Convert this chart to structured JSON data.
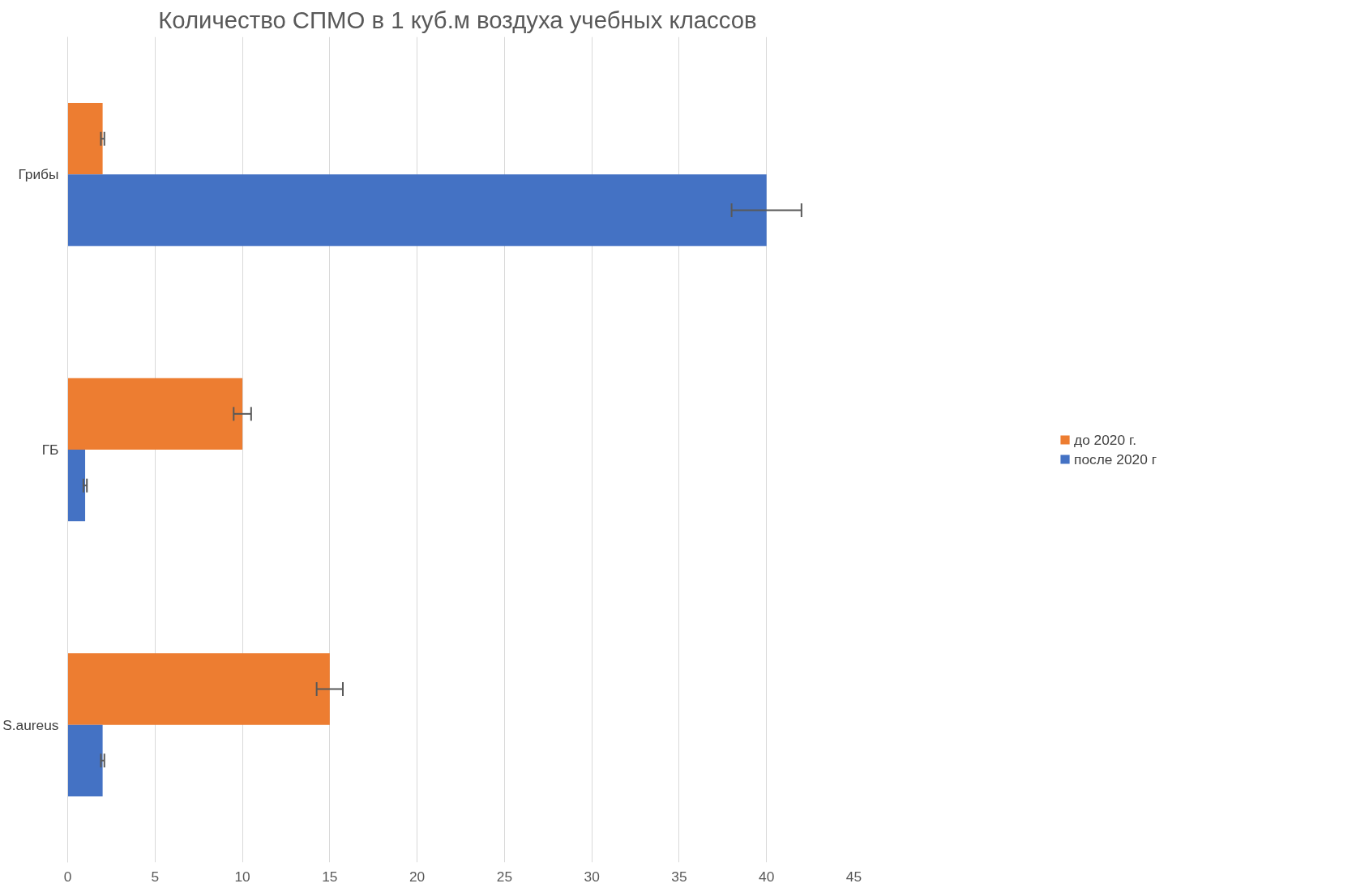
{
  "chart_data": {
    "type": "bar",
    "orientation": "horizontal",
    "title": "Количество СПМО в  1 куб.м воздуха учебных классов",
    "categories": [
      "Грибы",
      "ГБ",
      "S.aureus"
    ],
    "series": [
      {
        "name": "до 2020 г.",
        "color": "#ed7d31",
        "values": [
          2,
          10,
          15
        ],
        "errors": [
          0.1,
          0.5,
          0.75
        ]
      },
      {
        "name": "после 2020 г",
        "color": "#4472c4",
        "values": [
          40,
          1,
          2
        ],
        "errors": [
          2,
          0.1,
          0.1
        ]
      }
    ],
    "xlim": [
      0,
      45
    ],
    "xticks": [
      0,
      5,
      10,
      15,
      20,
      25,
      30,
      35,
      40,
      45
    ],
    "grid": "x",
    "legend": "right"
  }
}
